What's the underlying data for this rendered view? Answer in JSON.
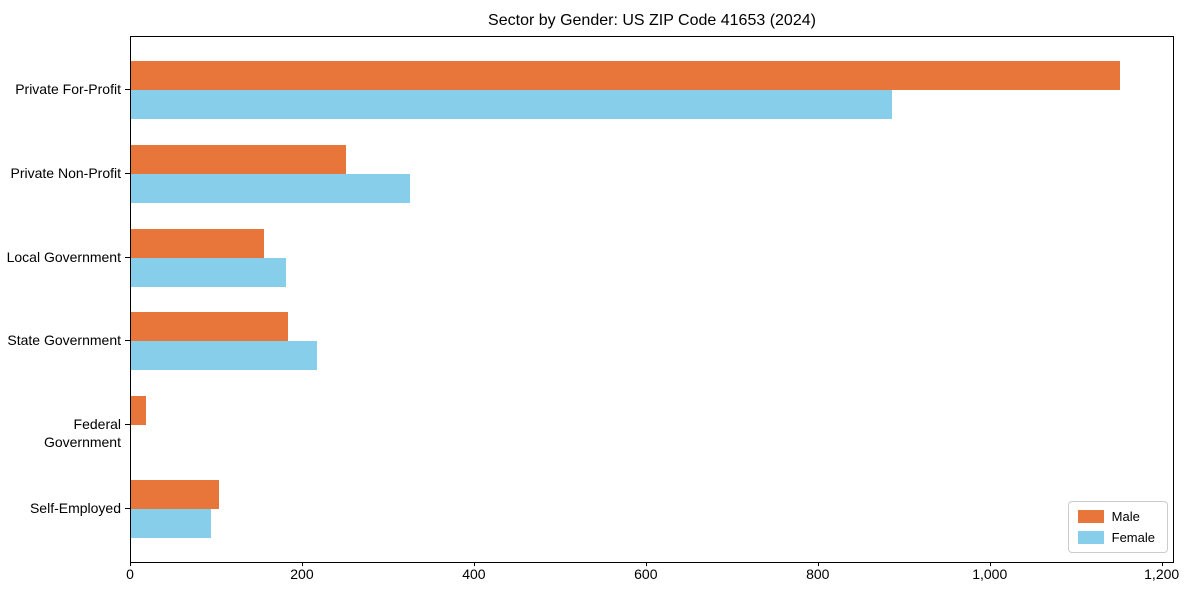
{
  "chart_data": {
    "type": "bar",
    "orientation": "horizontal",
    "title": "Sector by Gender: US ZIP Code 41653 (2024)",
    "xlabel": "",
    "ylabel": "",
    "categories": [
      "Private For-Profit",
      "Private Non-Profit",
      "Local Government",
      "State Government",
      "Federal Government",
      "Self-Employed"
    ],
    "series": [
      {
        "name": "Male",
        "color": "#e8763b",
        "values": [
          1150,
          250,
          155,
          183,
          17,
          102
        ]
      },
      {
        "name": "Female",
        "color": "#87ceeb",
        "values": [
          885,
          325,
          180,
          216,
          0,
          93
        ]
      }
    ],
    "xlim": [
      0,
      1212
    ],
    "x_ticks": [
      0,
      200,
      400,
      600,
      800,
      1000,
      1200
    ],
    "x_tick_labels": [
      "0",
      "200",
      "400",
      "600",
      "800",
      "1,000",
      "1,200"
    ],
    "legend_position": "lower right",
    "grid": false
  },
  "colors": {
    "background": "#ffffff",
    "axis": "#000000",
    "text": "#000000",
    "legend_border": "#cccccc",
    "male": "#e8763b",
    "female": "#87ceeb"
  }
}
